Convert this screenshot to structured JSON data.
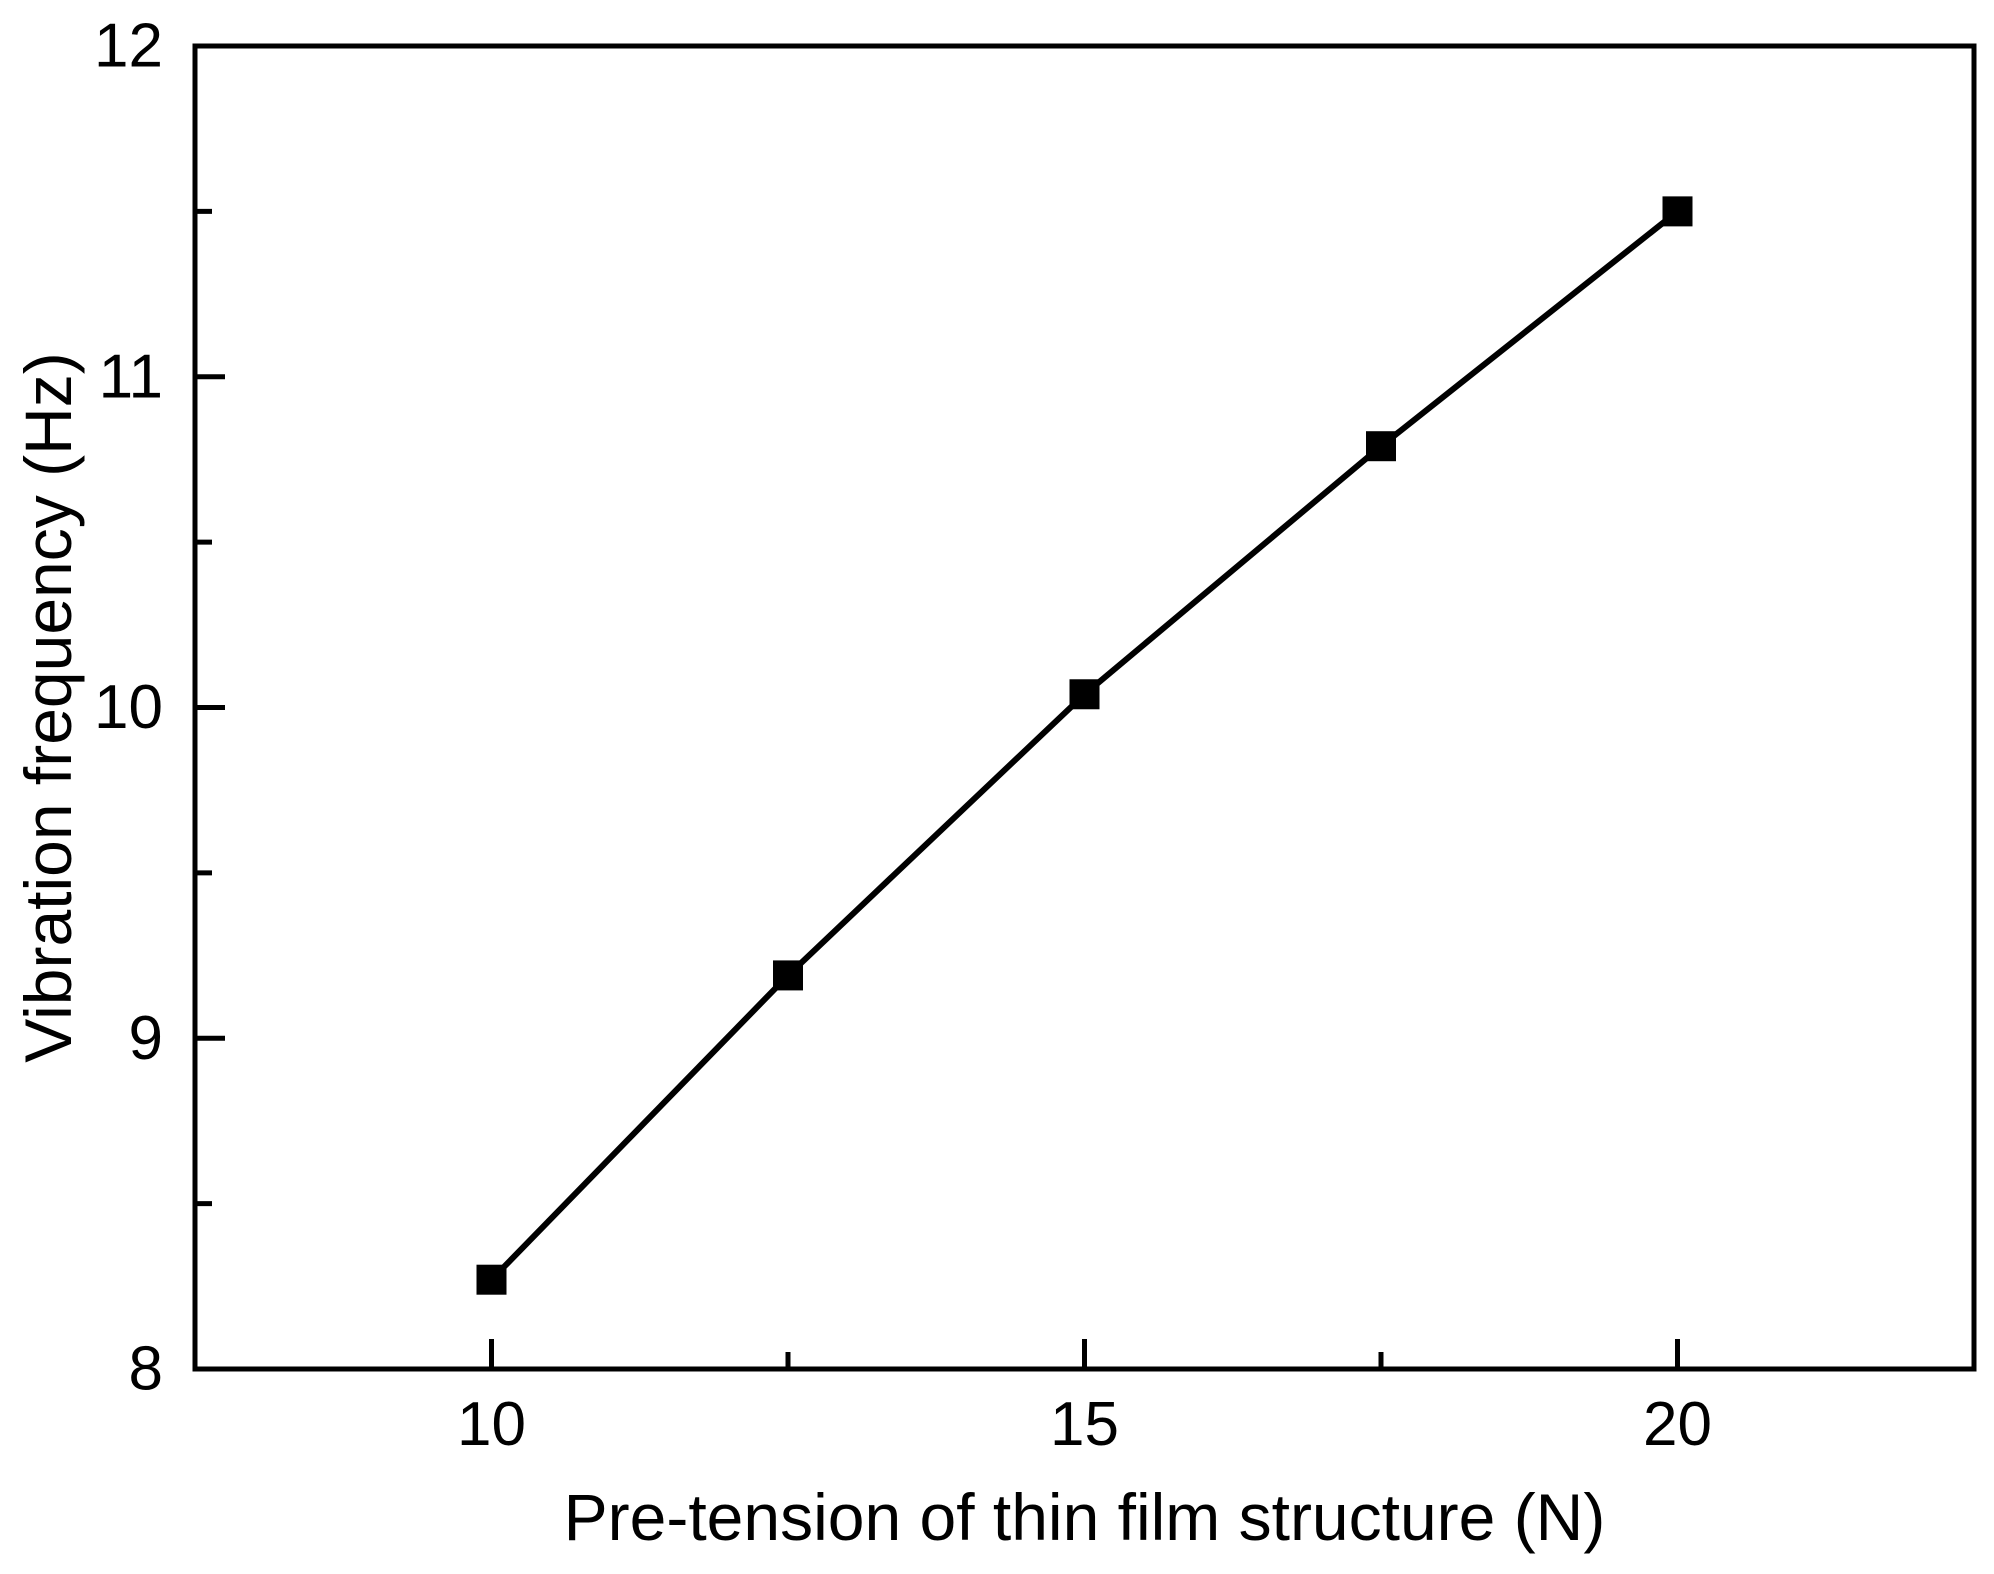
{
  "chart_data": {
    "type": "line",
    "title": "",
    "xlabel": "Pre-tension of thin film structure (N)",
    "ylabel": "Vibration frequency (Hz)",
    "x": [
      10,
      12.5,
      15,
      17.5,
      20
    ],
    "y": [
      8.27,
      9.19,
      10.04,
      10.79,
      11.5
    ],
    "xlim": [
      7.5,
      22.5
    ],
    "ylim": [
      8,
      12
    ],
    "x_major_ticks": [
      10,
      15,
      20
    ],
    "x_tick_labels": [
      "10",
      "15",
      "20"
    ],
    "x_minor_ticks": [
      12.5,
      17.5
    ],
    "y_major_ticks": [
      8,
      9,
      10,
      11,
      12
    ],
    "y_tick_labels": [
      "8",
      "9",
      "10",
      "11",
      "12"
    ],
    "y_minor_ticks": [
      8.5,
      9.5,
      10.5,
      11.5
    ],
    "grid": false,
    "legend_position": "none",
    "marker": "filled-square",
    "line_color": "#000000",
    "marker_color": "#000000",
    "axis_color": "#000000",
    "background_color": "#ffffff"
  }
}
